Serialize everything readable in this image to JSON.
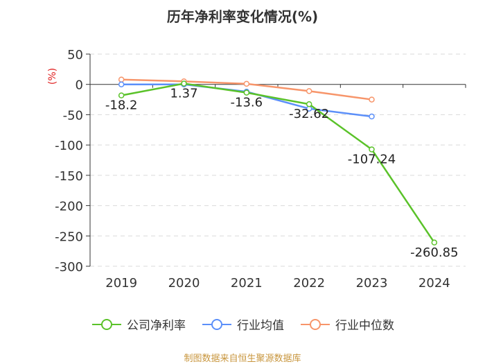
{
  "title": "历年净利率变化情况(%)",
  "source": "制图数据来自恒生聚源数据库",
  "chart_data": {
    "type": "line",
    "title": "历年净利率变化情况(%)",
    "ylabel": "(%)",
    "categories": [
      "2019",
      "2020",
      "2021",
      "2022",
      "2023",
      "2024"
    ],
    "ylim": [
      -300,
      50
    ],
    "yticks": [
      50,
      0,
      -50,
      -100,
      -150,
      -200,
      -250,
      -300
    ],
    "grid": true,
    "legend_position": "bottom",
    "series": [
      {
        "name": "公司净利率",
        "color": "#5ac229",
        "values": [
          -18.2,
          1.37,
          -13.6,
          -32.62,
          -107.24,
          -260.85
        ],
        "labels": [
          "-18.2",
          "1.37",
          "-13.6",
          "-32.62",
          "-107.24",
          "-260.85"
        ]
      },
      {
        "name": "行业均值",
        "color": "#5b8ff9",
        "values": [
          0,
          0,
          -12,
          -40,
          -53,
          null
        ]
      },
      {
        "name": "行业中位数",
        "color": "#f7956a",
        "values": [
          8,
          5,
          1,
          -11,
          -25,
          null
        ]
      }
    ]
  }
}
